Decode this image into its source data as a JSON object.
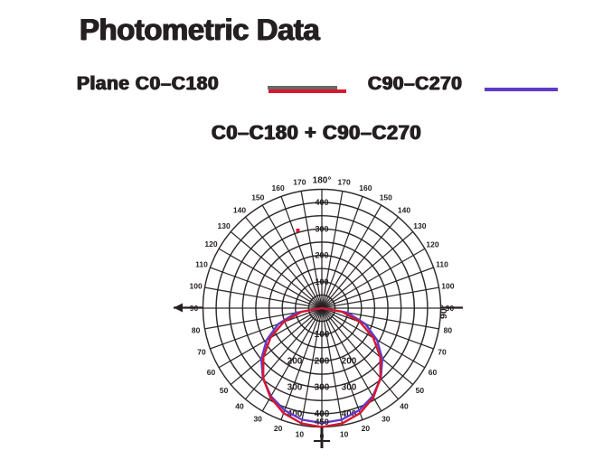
{
  "page": {
    "background": "#ffffff",
    "ink": "#241f21"
  },
  "title": "Photometric Data",
  "legend": {
    "items": [
      {
        "label": "Plane C0–C180",
        "color": "#d8172f",
        "secondary_color": "#6a6a6a"
      },
      {
        "label": "C90–C270",
        "color": "#5f3cc8"
      }
    ]
  },
  "subtitle": "C0–C180 + C90–C270",
  "chart_data": {
    "type": "polar",
    "title": "C0–C180 + C90–C270",
    "angle_zero_position": "bottom",
    "angle_step_deg": 10,
    "angle_label_max_deg": 180,
    "top_axis_label": "180°",
    "side_axis_label": "90°",
    "radial_axis": {
      "max": 450,
      "ring_step": 50,
      "ring_count": 9,
      "ring_labels": [
        100,
        200,
        300,
        400
      ],
      "peak_label": "450"
    },
    "grid": true,
    "legend_position": "top",
    "series": [
      {
        "name": "Plane C0–C180",
        "color": "#d8172f",
        "angles_deg": [
          -90,
          -80,
          -70,
          -60,
          -50,
          -40,
          -30,
          -20,
          -10,
          0,
          10,
          20,
          30,
          40,
          50,
          60,
          70,
          80,
          90
        ],
        "values": [
          0,
          78,
          154,
          225,
          289,
          345,
          390,
          423,
          443,
          450,
          443,
          423,
          390,
          345,
          289,
          225,
          154,
          78,
          0
        ]
      },
      {
        "name": "C90–C270",
        "color": "#5f3cc8",
        "angles_deg": [
          -90,
          -80,
          -70,
          -60,
          -50,
          -40,
          -30,
          -20,
          -10,
          0,
          10,
          20,
          30,
          40,
          50,
          60,
          70,
          80,
          90
        ],
        "values": [
          0,
          98,
          175,
          241,
          299,
          347,
          385,
          412,
          429,
          435,
          429,
          412,
          385,
          347,
          299,
          241,
          175,
          98,
          0
        ]
      }
    ],
    "annotations": {
      "peak_value_label": "450",
      "marker_dot": {
        "color": "#d8172f"
      }
    }
  }
}
